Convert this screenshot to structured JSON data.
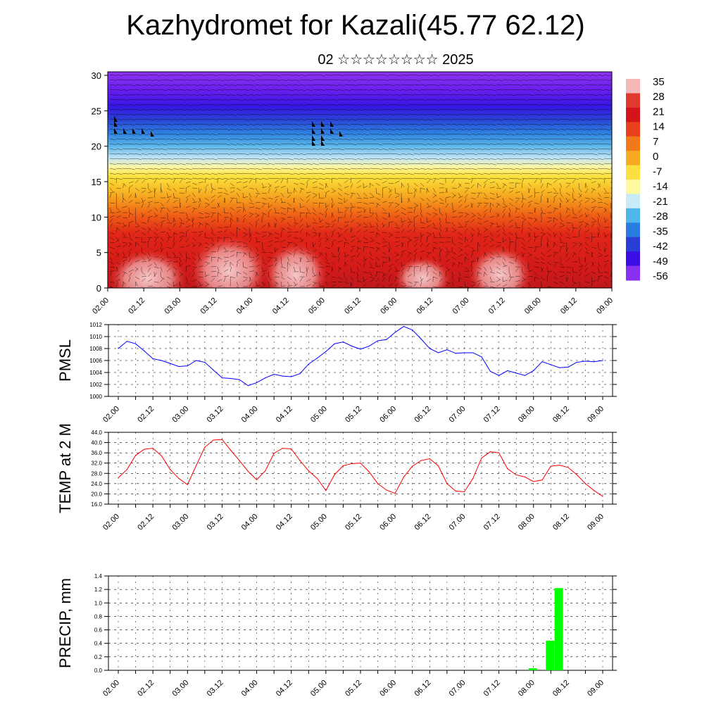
{
  "title": "Kazhydromet for Kazali(45.77 62.12)",
  "subtitle": "02 ☆☆☆☆☆☆☆☆ 2025",
  "colors": {
    "pmsl_line": "#0000ff",
    "temp_line": "#ff0000",
    "precip_bar": "#00ff00",
    "grid": "#000000"
  },
  "chart_data": [
    {
      "type": "heatmap",
      "name": "cross-section",
      "y_ticks": [
        "0",
        "5",
        "10",
        "15",
        "20",
        "25",
        "30"
      ],
      "ylim": [
        0,
        30.5
      ],
      "x_ticks": [
        "02.00",
        "02.12",
        "03.00",
        "03.12",
        "04.00",
        "04.12",
        "05.00",
        "05.12",
        "06.00",
        "06.12",
        "07.00",
        "07.12",
        "08.00",
        "08.12",
        "09.00"
      ],
      "colorbar_labels": [
        "35",
        "28",
        "21",
        "14",
        "7",
        "0",
        "-7",
        "-14",
        "-21",
        "-28",
        "-35",
        "-42",
        "-49",
        "-56"
      ],
      "colorbar_colors": [
        "#f4b8b8",
        "#e03a30",
        "#d4141a",
        "#e8401c",
        "#f07a1a",
        "#f6aa22",
        "#fbe040",
        "#fdf9a0",
        "#c8ecf6",
        "#4fb6ea",
        "#2a7ce0",
        "#2a3ed6",
        "#3a0ee6",
        "#8a30f0"
      ]
    },
    {
      "type": "line",
      "name": "PMSL",
      "ylabel": "PMSL",
      "ylim": [
        1000,
        1012
      ],
      "y_ticks": [
        "1000",
        "1002",
        "1004",
        "1006",
        "1008",
        "1010",
        "1012"
      ],
      "x_ticks": [
        "02.00",
        "02.12",
        "03.00",
        "03.12",
        "04.00",
        "04.12",
        "05.00",
        "05.12",
        "06.00",
        "06.12",
        "07.00",
        "07.12",
        "08.00",
        "08.12",
        "09.00"
      ],
      "x_hours": [
        0,
        3,
        6,
        9,
        12,
        15,
        18,
        21,
        24,
        27,
        30,
        33,
        36,
        39,
        42,
        45,
        48,
        51,
        54,
        57,
        60,
        63,
        66,
        69,
        72,
        75,
        78,
        81,
        84,
        87,
        90,
        93,
        96,
        99,
        102,
        105,
        108,
        111,
        114,
        117,
        120,
        123,
        126,
        129,
        132,
        135,
        138,
        141,
        144,
        147,
        150,
        153,
        156,
        159,
        162,
        165,
        168
      ],
      "values": [
        1008,
        1009.2,
        1008.8,
        1007.6,
        1006.3,
        1006,
        1005.5,
        1005,
        1005.1,
        1006,
        1005.7,
        1004.4,
        1003.1,
        1003,
        1002.8,
        1001.8,
        1002.3,
        1003.1,
        1003.7,
        1003.4,
        1003.3,
        1003.8,
        1005.4,
        1006.4,
        1007.5,
        1008.8,
        1009.1,
        1008.4,
        1007.9,
        1008.4,
        1009.3,
        1009.5,
        1010.7,
        1011.7,
        1011.1,
        1009.6,
        1008,
        1007.3,
        1007.8,
        1007.2,
        1007.3,
        1007.3,
        1006.6,
        1004.2,
        1003.5,
        1004.3,
        1003.9,
        1003.5,
        1004.3,
        1005.8,
        1005.3,
        1004.8,
        1004.9,
        1005.7,
        1005.9,
        1005.8,
        1006
      ],
      "series": [
        {
          "name": "PMSL"
        }
      ]
    },
    {
      "type": "line",
      "name": "TEMP at 2 M",
      "ylabel": "TEMP at 2 M",
      "ylim": [
        16,
        44
      ],
      "y_ticks": [
        "16.0",
        "20.0",
        "24.0",
        "28.0",
        "32.0",
        "36.0",
        "40.0",
        "44.0"
      ],
      "x_ticks": [
        "02.00",
        "02.12",
        "03.00",
        "03.12",
        "04.00",
        "04.12",
        "05.00",
        "05.12",
        "06.00",
        "06.12",
        "07.00",
        "07.12",
        "08.00",
        "08.12",
        "09.00"
      ],
      "x_hours": [
        0,
        3,
        6,
        9,
        12,
        15,
        18,
        21,
        24,
        27,
        30,
        33,
        36,
        39,
        42,
        45,
        48,
        51,
        54,
        57,
        60,
        63,
        66,
        69,
        72,
        75,
        78,
        81,
        84,
        87,
        90,
        93,
        96,
        99,
        102,
        105,
        108,
        111,
        114,
        117,
        120,
        123,
        126,
        129,
        132,
        135,
        138,
        141,
        144,
        147,
        150,
        153,
        156,
        159,
        162,
        165,
        168
      ],
      "values": [
        26.3,
        29.5,
        35,
        37.4,
        37.8,
        34.8,
        29.5,
        26,
        23.6,
        31,
        38.2,
        41,
        41.2,
        37,
        33,
        28.8,
        25.5,
        29,
        35.8,
        37.8,
        37.5,
        33,
        29,
        26,
        21.3,
        27.5,
        31,
        31.8,
        32,
        28.6,
        24,
        21.5,
        20.2,
        26.6,
        30.8,
        33,
        33.7,
        30.9,
        24,
        21.1,
        20.8,
        26,
        34,
        36.4,
        36,
        29.8,
        27.4,
        26.6,
        24.8,
        25.4,
        30.8,
        31.2,
        30.3,
        27.5,
        24,
        21.3,
        19
      ],
      "series": [
        {
          "name": "TEMP at 2 M"
        }
      ]
    },
    {
      "type": "bar",
      "name": "PRECIP, mm",
      "ylabel": "PRECIP, mm",
      "ylim": [
        0,
        1.4
      ],
      "y_ticks": [
        "0.0",
        "0.2",
        "0.4",
        "0.6",
        "0.8",
        "1.0",
        "1.2",
        "1.4"
      ],
      "x_ticks": [
        "02.00",
        "02.12",
        "03.00",
        "03.12",
        "04.00",
        "04.12",
        "05.00",
        "05.12",
        "06.00",
        "06.12",
        "07.00",
        "07.12",
        "08.00",
        "08.12",
        "09.00"
      ],
      "bars": [
        {
          "x_hour": 144,
          "value": 0.03
        },
        {
          "x_hour": 150,
          "value": 0.44
        },
        {
          "x_hour": 153,
          "value": 1.22
        }
      ],
      "series": [
        {
          "name": "PRECIP, mm"
        }
      ]
    }
  ]
}
